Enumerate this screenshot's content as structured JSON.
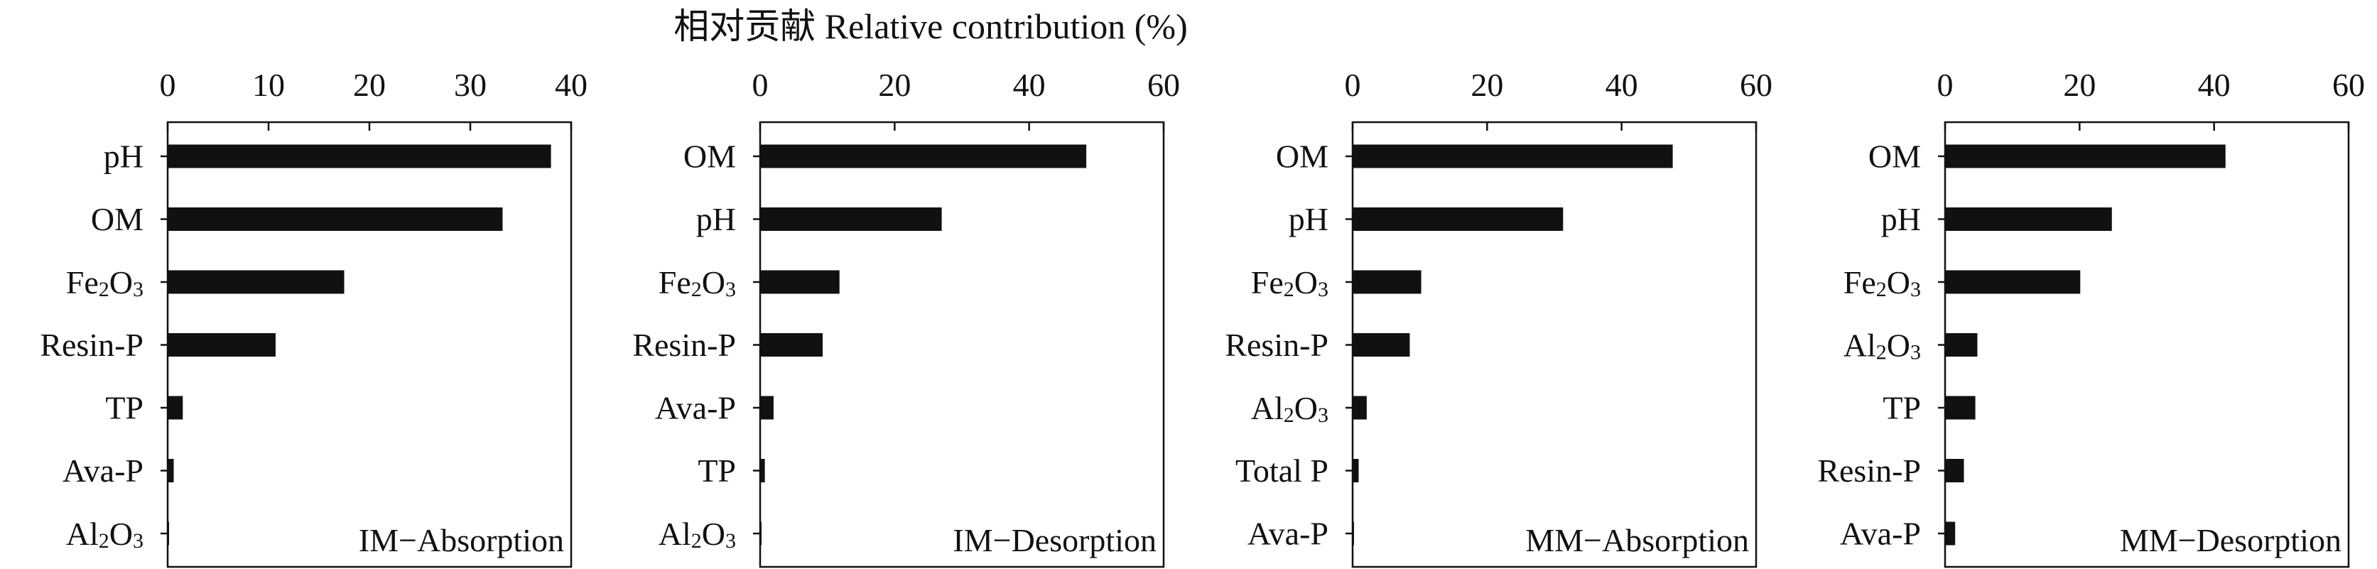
{
  "title": "相对贡献 Relative contribution (%)",
  "colors": {
    "bar": "#111111",
    "axis": "#111111",
    "background": "#ffffff"
  },
  "chart_data": [
    {
      "type": "bar",
      "orientation": "horizontal",
      "panel_label": "IM−Absorption",
      "xlim": [
        0,
        40
      ],
      "xticks": [
        "0",
        "10",
        "20",
        "30",
        "40"
      ],
      "tick_values": [
        0,
        10,
        20,
        30,
        40
      ],
      "categories": [
        "pH",
        "OM",
        "Fe2O3",
        "Resin-P",
        "TP",
        "Ava-P",
        "Al2O3"
      ],
      "values": [
        38.0,
        33.2,
        17.5,
        10.7,
        1.5,
        0.6,
        0.1
      ]
    },
    {
      "type": "bar",
      "orientation": "horizontal",
      "panel_label": "IM−Desorption",
      "xlim": [
        0,
        60
      ],
      "xticks": [
        "0",
        "20",
        "40",
        "60"
      ],
      "tick_values": [
        0,
        20,
        40,
        60
      ],
      "categories": [
        "OM",
        "pH",
        "Fe2O3",
        "Resin-P",
        "Ava-P",
        "TP",
        "Al2O3"
      ],
      "values": [
        48.5,
        27.0,
        11.8,
        9.3,
        2.0,
        0.7,
        0.2
      ]
    },
    {
      "type": "bar",
      "orientation": "horizontal",
      "panel_label": "MM−Absorption",
      "xlim": [
        0,
        60
      ],
      "xticks": [
        "0",
        "20",
        "40",
        "60"
      ],
      "tick_values": [
        0,
        20,
        40,
        60
      ],
      "categories": [
        "OM",
        "pH",
        "Fe2O3",
        "Resin-P",
        "Al2O3",
        "Total P",
        "Ava-P"
      ],
      "values": [
        47.6,
        31.3,
        10.2,
        8.5,
        2.1,
        0.9,
        0.2
      ]
    },
    {
      "type": "bar",
      "orientation": "horizontal",
      "panel_label": "MM−Desorption",
      "xlim": [
        0,
        60
      ],
      "xticks": [
        "0",
        "20",
        "40",
        "60"
      ],
      "tick_values": [
        0,
        20,
        40,
        60
      ],
      "categories": [
        "OM",
        "pH",
        "Fe2O3",
        "Al2O3",
        "TP",
        "Resin-P",
        "Ava-P"
      ],
      "values": [
        41.7,
        24.8,
        20.1,
        4.8,
        4.5,
        2.8,
        1.5
      ]
    }
  ]
}
